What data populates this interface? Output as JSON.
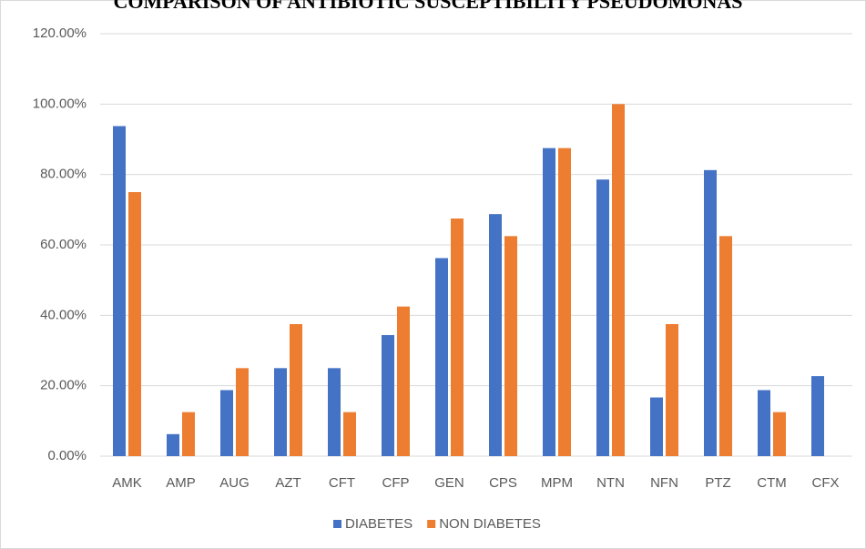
{
  "chart_data": {
    "type": "bar",
    "title": "COMPARISON OF ANTIBIOTIC SUSCEPTIBILITY PSEUDOMONAS",
    "categories": [
      "AMK",
      "AMP",
      "AUG",
      "AZT",
      "CFT",
      "CFP",
      "GEN",
      "CPS",
      "MPM",
      "NTN",
      "NFN",
      "PTZ",
      "CTM",
      "CFX"
    ],
    "series": [
      {
        "name": "DIABETES",
        "color": "#4472c4",
        "values": [
          93.75,
          6.25,
          18.75,
          25,
          25,
          34.38,
          56.25,
          68.75,
          87.5,
          78.57,
          16.67,
          81.25,
          18.75,
          22.73
        ]
      },
      {
        "name": "NON DIABETES",
        "color": "#ed7d31",
        "values": [
          75,
          12.5,
          25,
          37.5,
          12.5,
          42.5,
          67.5,
          62.5,
          87.5,
          100,
          37.5,
          62.5,
          12.5,
          0
        ]
      }
    ],
    "ylim": [
      0,
      120
    ],
    "yticks": [
      {
        "value": 0,
        "label": "0.00%"
      },
      {
        "value": 20,
        "label": "20.00%"
      },
      {
        "value": 40,
        "label": "40.00%"
      },
      {
        "value": 60,
        "label": "60.00%"
      },
      {
        "value": 80,
        "label": "80.00%"
      },
      {
        "value": 100,
        "label": "100.00%"
      },
      {
        "value": 120,
        "label": "120.00%"
      }
    ],
    "grid": true,
    "legend": "bottom"
  }
}
